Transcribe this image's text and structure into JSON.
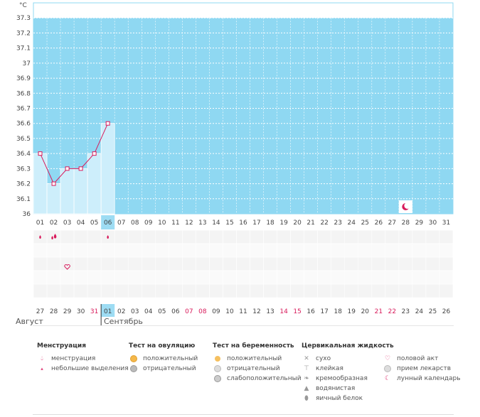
{
  "chart_data": {
    "type": "line",
    "unit": "°C",
    "ylim": [
      36.0,
      37.4
    ],
    "yticks": [
      "37.3",
      "37.2",
      "37.1",
      "37",
      "36.9",
      "36.8",
      "36.7",
      "36.6",
      "36.5",
      "36.4",
      "36.3",
      "36.2",
      "36.1",
      "36"
    ],
    "top_days": [
      "01",
      "02",
      "03",
      "04",
      "05",
      "06",
      "07",
      "08",
      "09",
      "10",
      "11",
      "12",
      "13",
      "14",
      "15",
      "16",
      "17",
      "18",
      "19",
      "20",
      "21",
      "22",
      "23",
      "24",
      "25",
      "26",
      "27",
      "28",
      "29",
      "30",
      "31"
    ],
    "highlight_day": "06",
    "temperatures": [
      36.4,
      36.2,
      36.3,
      36.3,
      36.4,
      36.6
    ],
    "bottom_days": [
      "27",
      "28",
      "29",
      "30",
      "31",
      "01",
      "02",
      "03",
      "04",
      "05",
      "06",
      "07",
      "08",
      "09",
      "10",
      "11",
      "12",
      "13",
      "14",
      "15",
      "16",
      "17",
      "18",
      "19",
      "20",
      "21",
      "22",
      "23",
      "24",
      "25",
      "26"
    ],
    "bottom_red": [
      "31",
      "07",
      "08",
      "14",
      "15",
      "21",
      "22"
    ],
    "bottom_highlight": "01",
    "months": [
      "Август",
      "Сентябрь"
    ]
  },
  "legend": {
    "menstruation": {
      "title": "Менструация",
      "items": [
        "менструация",
        "небольшие выделения"
      ]
    },
    "ovulation": {
      "title": "Тест на овуляцию",
      "items": [
        "положительный",
        "отрицательный"
      ]
    },
    "pregnancy": {
      "title": "Тест на беременность",
      "items": [
        "положительный",
        "отрицательный",
        "слабоположительный"
      ]
    },
    "cervical": {
      "title": "Цервикальная жидкость",
      "items": [
        "сухо",
        "клейкая",
        "кремообразная",
        "водянистая",
        "яичный белок"
      ]
    },
    "other": {
      "items": [
        "половой акт",
        "прием лекарств",
        "лунный календарь"
      ]
    }
  },
  "colors": {
    "bg": "#8fd8f2",
    "fill": "#cdeefb",
    "line": "#d8195a",
    "red": "#d8195a"
  },
  "icons": [
    "drop-icon",
    "small-drop-icon",
    "heart-icon",
    "moon-icon"
  ]
}
